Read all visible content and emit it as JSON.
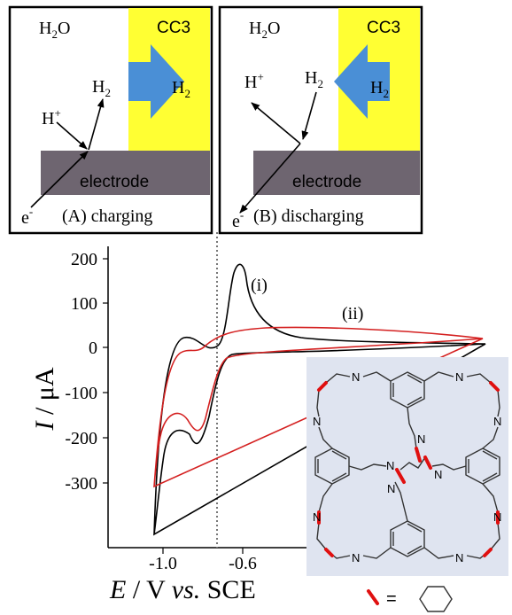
{
  "panel_a": {
    "water": "H",
    "water_sub": "2",
    "water_tail": "O",
    "cage": "CC3",
    "h2_in_cage": "H",
    "h2_in_cage_sub": "2",
    "proton": "H",
    "proton_sup": "+",
    "h2_free": "H",
    "h2_free_sub": "2",
    "electrode": "electrode",
    "electron": "e",
    "electron_sup": "-",
    "caption": "(A) charging"
  },
  "panel_b": {
    "water": "H",
    "water_sub": "2",
    "water_tail": "O",
    "cage": "CC3",
    "h2_in_cage": "H",
    "h2_in_cage_sub": "2",
    "proton": "H",
    "proton_sup": "+",
    "h2_free": "H",
    "h2_free_sub": "2",
    "electrode": "electrode",
    "electron": "e",
    "electron_sup": "-",
    "caption": "(B) discharging"
  },
  "cv_plot": {
    "y_ticks": [
      "200",
      "100",
      "0",
      "-100",
      "-200",
      "-300"
    ],
    "x_ticks": [
      "-1.0",
      "-0.6"
    ],
    "y_label_main": "I",
    "y_label_rest": " / μA",
    "x_label_main": "E",
    "x_label_rest": " / V ",
    "x_label_vs": "vs.",
    "x_label_ref": " SCE",
    "curve_i_label": "(i)",
    "curve_ii_label": "(ii)",
    "curve_i_color": "#000000",
    "curve_ii_color": "#d42020"
  },
  "inset": {
    "n_label": "N",
    "legend_equals": "="
  },
  "colors": {
    "cage_yellow": "#ffff33",
    "arrow_blue": "#4a8fd6",
    "electrode_gray": "#6e6570",
    "inset_bg": "#dfe4f0",
    "highlight_red": "#e01010"
  }
}
